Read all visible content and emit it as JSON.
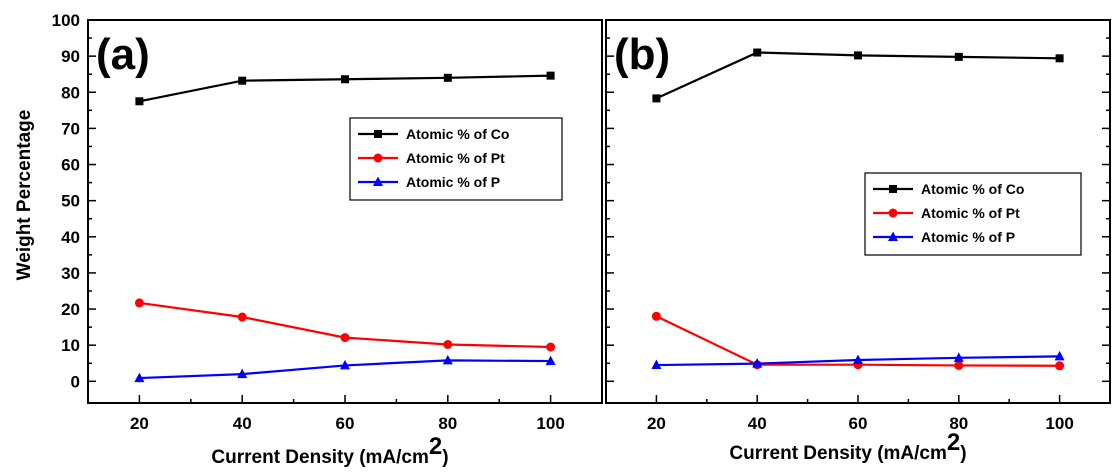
{
  "chart_data": [
    {
      "type": "line",
      "panel_label": "(a)",
      "xlabel": "Current Density (mA/cm",
      "xlabel_sup": "2",
      "xlabel_close": ")",
      "ylabel": "Weight Percentage",
      "xlim": [
        10,
        110
      ],
      "ylim": [
        -6,
        100
      ],
      "x_ticks": [
        "20",
        "40",
        "60",
        "80",
        "100"
      ],
      "y_ticks": [
        "0",
        "10",
        "20",
        "30",
        "40",
        "50",
        "60",
        "70",
        "80",
        "90",
        "100"
      ],
      "grid": false,
      "legend_position": "right-center",
      "x": [
        20,
        40,
        60,
        80,
        100
      ],
      "series": [
        {
          "name": "Atomic % of Co",
          "values": [
            77.5,
            83.2,
            83.6,
            84.0,
            84.6
          ],
          "color": "#000000",
          "marker": "square"
        },
        {
          "name": "Atomic % of Pt",
          "values": [
            21.7,
            17.8,
            12.1,
            10.2,
            9.5
          ],
          "color": "#ff0000",
          "marker": "circle"
        },
        {
          "name": "Atomic % of P",
          "values": [
            0.9,
            2.0,
            4.4,
            5.8,
            5.6
          ],
          "color": "#0000ff",
          "marker": "triangle"
        }
      ]
    },
    {
      "type": "line",
      "panel_label": "(b)",
      "xlabel": "Current Density (mA/cm",
      "xlabel_sup": "2",
      "xlabel_close": ")",
      "xlim": [
        10,
        110
      ],
      "ylim": [
        -6,
        100
      ],
      "x_ticks": [
        "20",
        "40",
        "60",
        "80",
        "100"
      ],
      "grid": false,
      "legend_position": "right-center",
      "x": [
        20,
        40,
        60,
        80,
        100
      ],
      "series": [
        {
          "name": "Atomic % of Co",
          "values": [
            78.3,
            91.0,
            90.2,
            89.8,
            89.4
          ],
          "color": "#000000",
          "marker": "square"
        },
        {
          "name": "Atomic % of Pt",
          "values": [
            18.0,
            4.6,
            4.6,
            4.4,
            4.3
          ],
          "color": "#ff0000",
          "marker": "circle"
        },
        {
          "name": "Atomic % of P",
          "values": [
            4.5,
            4.9,
            5.9,
            6.5,
            6.9
          ],
          "color": "#0000ff",
          "marker": "triangle"
        }
      ]
    }
  ]
}
